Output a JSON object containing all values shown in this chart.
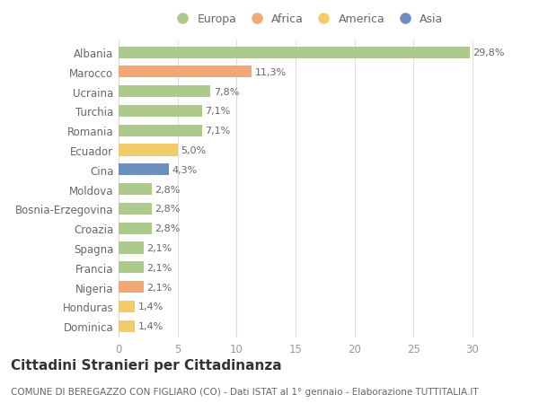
{
  "categories": [
    "Albania",
    "Marocco",
    "Ucraina",
    "Turchia",
    "Romania",
    "Ecuador",
    "Cina",
    "Moldova",
    "Bosnia-Erzegovina",
    "Croazia",
    "Spagna",
    "Francia",
    "Nigeria",
    "Honduras",
    "Dominica"
  ],
  "values": [
    29.8,
    11.3,
    7.8,
    7.1,
    7.1,
    5.0,
    4.3,
    2.8,
    2.8,
    2.8,
    2.1,
    2.1,
    2.1,
    1.4,
    1.4
  ],
  "labels": [
    "29,8%",
    "11,3%",
    "7,8%",
    "7,1%",
    "7,1%",
    "5,0%",
    "4,3%",
    "2,8%",
    "2,8%",
    "2,8%",
    "2,1%",
    "2,1%",
    "2,1%",
    "1,4%",
    "1,4%"
  ],
  "continent": [
    "Europa",
    "Africa",
    "Europa",
    "Europa",
    "Europa",
    "America",
    "Asia",
    "Europa",
    "Europa",
    "Europa",
    "Europa",
    "Europa",
    "Africa",
    "America",
    "America"
  ],
  "colors": {
    "Europa": "#adc98b",
    "Africa": "#f0a878",
    "America": "#f0cc6a",
    "Asia": "#6b8fbe"
  },
  "legend_order": [
    "Europa",
    "Africa",
    "America",
    "Asia"
  ],
  "title": "Cittadini Stranieri per Cittadinanza",
  "subtitle": "COMUNE DI BEREGAZZO CON FIGLIARO (CO) - Dati ISTAT al 1° gennaio - Elaborazione TUTTITALIA.IT",
  "xlim": [
    0,
    32
  ],
  "xticks": [
    0,
    5,
    10,
    15,
    20,
    25,
    30
  ],
  "background_color": "#ffffff",
  "bar_bg_color": "#ffffff",
  "title_fontsize": 11,
  "subtitle_fontsize": 7.5,
  "label_fontsize": 8,
  "tick_fontsize": 8.5,
  "legend_fontsize": 9
}
